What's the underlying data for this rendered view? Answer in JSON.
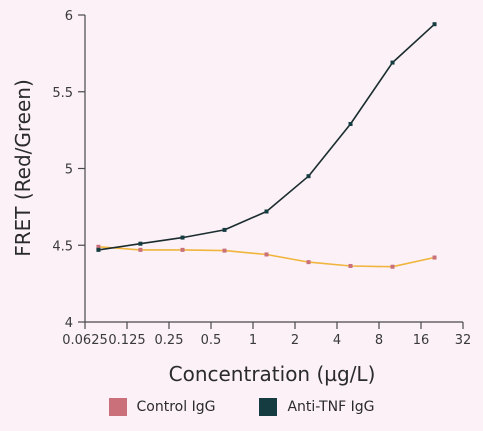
{
  "chart_data": {
    "type": "line",
    "xlabel": "Concentration (µg/L)",
    "ylabel": "FRET (Red/Green)",
    "x_scale": "log2",
    "xlim": [
      0.0625,
      32
    ],
    "ylim": [
      4,
      6
    ],
    "x_ticks": [
      0.0625,
      0.125,
      0.25,
      0.5,
      1,
      2,
      4,
      8,
      16,
      32
    ],
    "x_tick_labels": [
      "0.0625",
      "0.125",
      "0.25",
      "0.5",
      "1",
      "2",
      "4",
      "8",
      "16",
      "32"
    ],
    "y_ticks": [
      4,
      4.5,
      5,
      5.5,
      6
    ],
    "y_tick_labels": [
      "4",
      "4.5",
      "5",
      "5.5",
      "6"
    ],
    "x": [
      0.078,
      0.156,
      0.3125,
      0.625,
      1.25,
      2.5,
      5,
      10,
      20
    ],
    "series": [
      {
        "name": "Control IgG",
        "color": "#c9707a",
        "line_color": "#f0b53c",
        "values": [
          4.49,
          4.47,
          4.47,
          4.465,
          4.44,
          4.39,
          4.365,
          4.36,
          4.42
        ]
      },
      {
        "name": "Anti-TNF IgG",
        "color": "#153c40",
        "line_color": "#1a2c2e",
        "values": [
          4.47,
          4.51,
          4.55,
          4.6,
          4.72,
          4.95,
          5.29,
          5.69,
          5.94
        ]
      }
    ],
    "legend_position": "bottom",
    "grid": false
  }
}
